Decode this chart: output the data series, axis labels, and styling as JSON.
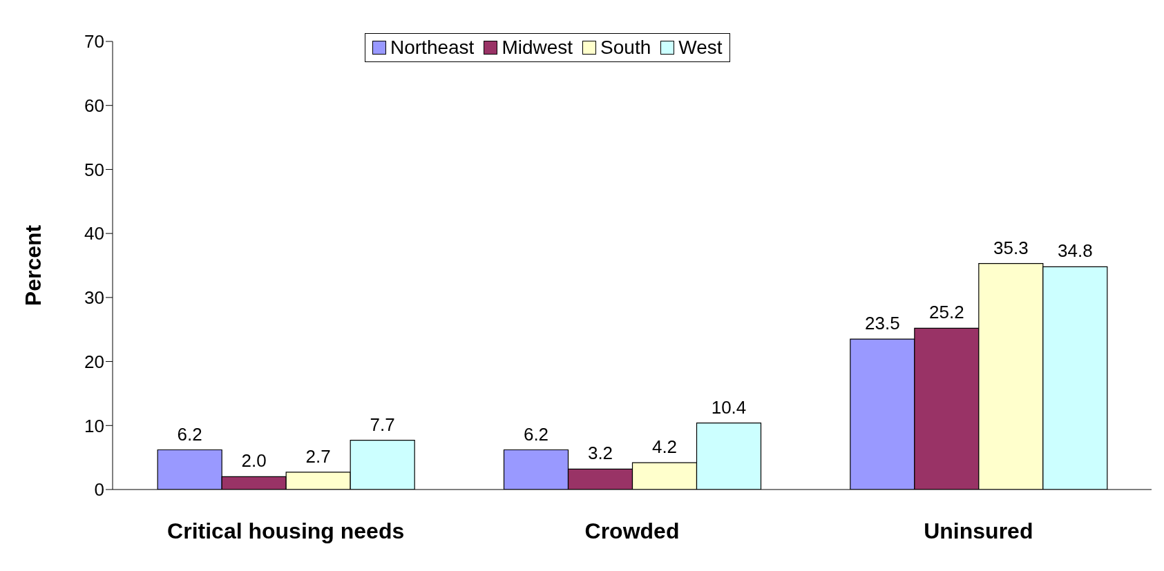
{
  "chart_data": {
    "type": "bar",
    "ylabel": "Percent",
    "categories": [
      "Critical housing needs",
      "Crowded",
      "Uninsured"
    ],
    "series": [
      {
        "name": "Northeast",
        "color": "#9999ff",
        "values": [
          6.2,
          6.2,
          23.5
        ],
        "value_labels": [
          "6.2",
          "6.2",
          "23.5"
        ]
      },
      {
        "name": "Midwest",
        "color": "#993366",
        "values": [
          2.0,
          3.2,
          25.2
        ],
        "value_labels": [
          "2.0",
          "3.2",
          "25.2"
        ]
      },
      {
        "name": "South",
        "color": "#ffffcc",
        "values": [
          2.7,
          4.2,
          35.3
        ],
        "value_labels": [
          "2.7",
          "4.2",
          "35.3"
        ]
      },
      {
        "name": "West",
        "color": "#ccffff",
        "values": [
          7.7,
          10.4,
          34.8
        ],
        "value_labels": [
          "7.7",
          "10.4",
          "34.8"
        ]
      }
    ],
    "ylim": [
      0,
      70
    ],
    "yticks": [
      0,
      10,
      20,
      30,
      40,
      50,
      60,
      70
    ],
    "grid": false,
    "legend": "top"
  }
}
